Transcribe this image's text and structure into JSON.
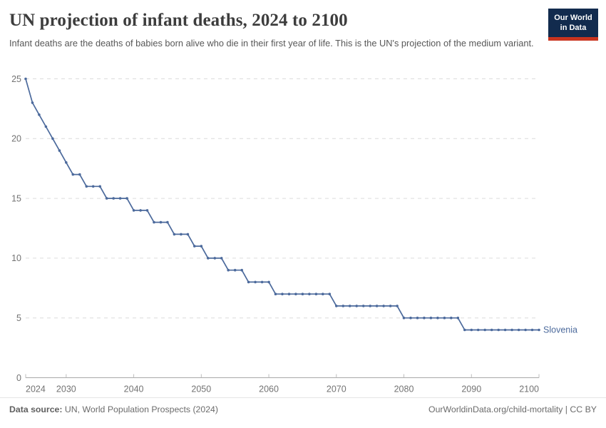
{
  "header": {
    "title": "UN projection of infant deaths, 2024 to 2100",
    "subtitle": "Infant deaths are the deaths of babies born alive who die in their first year of life. This is the UN's projection of the medium variant.",
    "logo": {
      "line1": "Our World",
      "line2": "in Data"
    }
  },
  "colors": {
    "line": "#4C6A9C",
    "logo_bg": "#122B4E",
    "logo_bar": "#C9341F",
    "grid": "#dcdcdc",
    "axis": "#a8a8a8",
    "tick": "#bdbdbd",
    "axis_label": "#737373"
  },
  "chart_data": {
    "type": "line",
    "title": "UN projection of infant deaths, 2024 to 2100",
    "xlabel": "",
    "ylabel": "",
    "xlim": [
      2024,
      2100
    ],
    "ylim": [
      0,
      25
    ],
    "grid": true,
    "legend_position": "end-of-line",
    "xticks": [
      2024,
      2030,
      2040,
      2050,
      2060,
      2070,
      2080,
      2090,
      2100
    ],
    "yticks": [
      0,
      5,
      10,
      15,
      20,
      25
    ],
    "x": [
      2024,
      2025,
      2026,
      2027,
      2028,
      2029,
      2030,
      2031,
      2032,
      2033,
      2034,
      2035,
      2036,
      2037,
      2038,
      2039,
      2040,
      2041,
      2042,
      2043,
      2044,
      2045,
      2046,
      2047,
      2048,
      2049,
      2050,
      2051,
      2052,
      2053,
      2054,
      2055,
      2056,
      2057,
      2058,
      2059,
      2060,
      2061,
      2062,
      2063,
      2064,
      2065,
      2066,
      2067,
      2068,
      2069,
      2070,
      2071,
      2072,
      2073,
      2074,
      2075,
      2076,
      2077,
      2078,
      2079,
      2080,
      2081,
      2082,
      2083,
      2084,
      2085,
      2086,
      2087,
      2088,
      2089,
      2090,
      2091,
      2092,
      2093,
      2094,
      2095,
      2096,
      2097,
      2098,
      2099,
      2100
    ],
    "series": [
      {
        "name": "Slovenia",
        "values": [
          25,
          23,
          22,
          21,
          20,
          19,
          18,
          17,
          17,
          16,
          16,
          16,
          15,
          15,
          15,
          15,
          14,
          14,
          14,
          13,
          13,
          13,
          12,
          12,
          12,
          11,
          11,
          10,
          10,
          10,
          9,
          9,
          9,
          8,
          8,
          8,
          8,
          7,
          7,
          7,
          7,
          7,
          7,
          7,
          7,
          7,
          6,
          6,
          6,
          6,
          6,
          6,
          6,
          6,
          6,
          6,
          5,
          5,
          5,
          5,
          5,
          5,
          5,
          5,
          5,
          4,
          4,
          4,
          4,
          4,
          4,
          4,
          4,
          4,
          4,
          4,
          4
        ]
      }
    ]
  },
  "footer": {
    "source_label": "Data source:",
    "source_text": " UN, World Population Prospects (2024)",
    "credit": "OurWorldinData.org/child-mortality | CC BY"
  }
}
